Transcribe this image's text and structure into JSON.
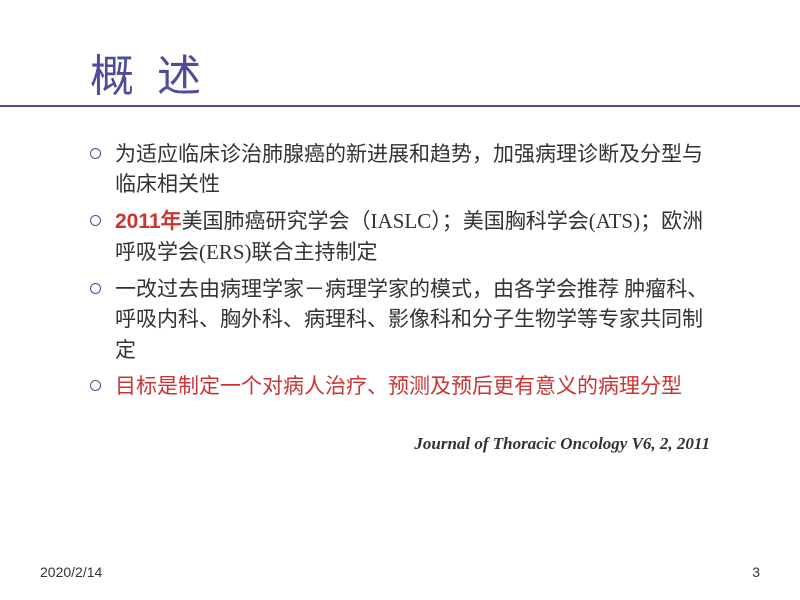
{
  "title": "概 述",
  "bullets": [
    {
      "segments": [
        {
          "text": "为适应临床诊治肺腺癌的新进展和趋势，加强病理诊断及分型与临床相关性",
          "style": "normal"
        }
      ]
    },
    {
      "segments": [
        {
          "text": "2011年",
          "style": "red-bold"
        },
        {
          "text": "美国肺癌研究学会（IASLC）；美国胸科学会(ATS)；欧洲呼吸学会(ERS)联合主持制定",
          "style": "normal"
        }
      ]
    },
    {
      "segments": [
        {
          "text": "一改过去由病理学家－病理学家的模式，由各学会推荐 肿瘤科、呼吸内科、胸外科、病理科、影像科和分子生物学等专家共同制定",
          "style": "normal"
        }
      ]
    },
    {
      "segments": [
        {
          "text": "目标是制定一个对病人治疗、预测及预后更有意义的病理分型",
          "style": "red"
        }
      ]
    }
  ],
  "citation": "Journal of Thoracic Oncology V6, 2, 2011",
  "footer": {
    "date": "2020/2/14",
    "page": "3"
  },
  "colors": {
    "title": "#4d4d99",
    "bullet_border": "#4d4d99",
    "text": "#333333",
    "highlight": "#cc3333",
    "background": "#ffffff"
  },
  "typography": {
    "title_fontsize": 44,
    "body_fontsize": 21,
    "citation_fontsize": 17,
    "footer_fontsize": 14
  }
}
